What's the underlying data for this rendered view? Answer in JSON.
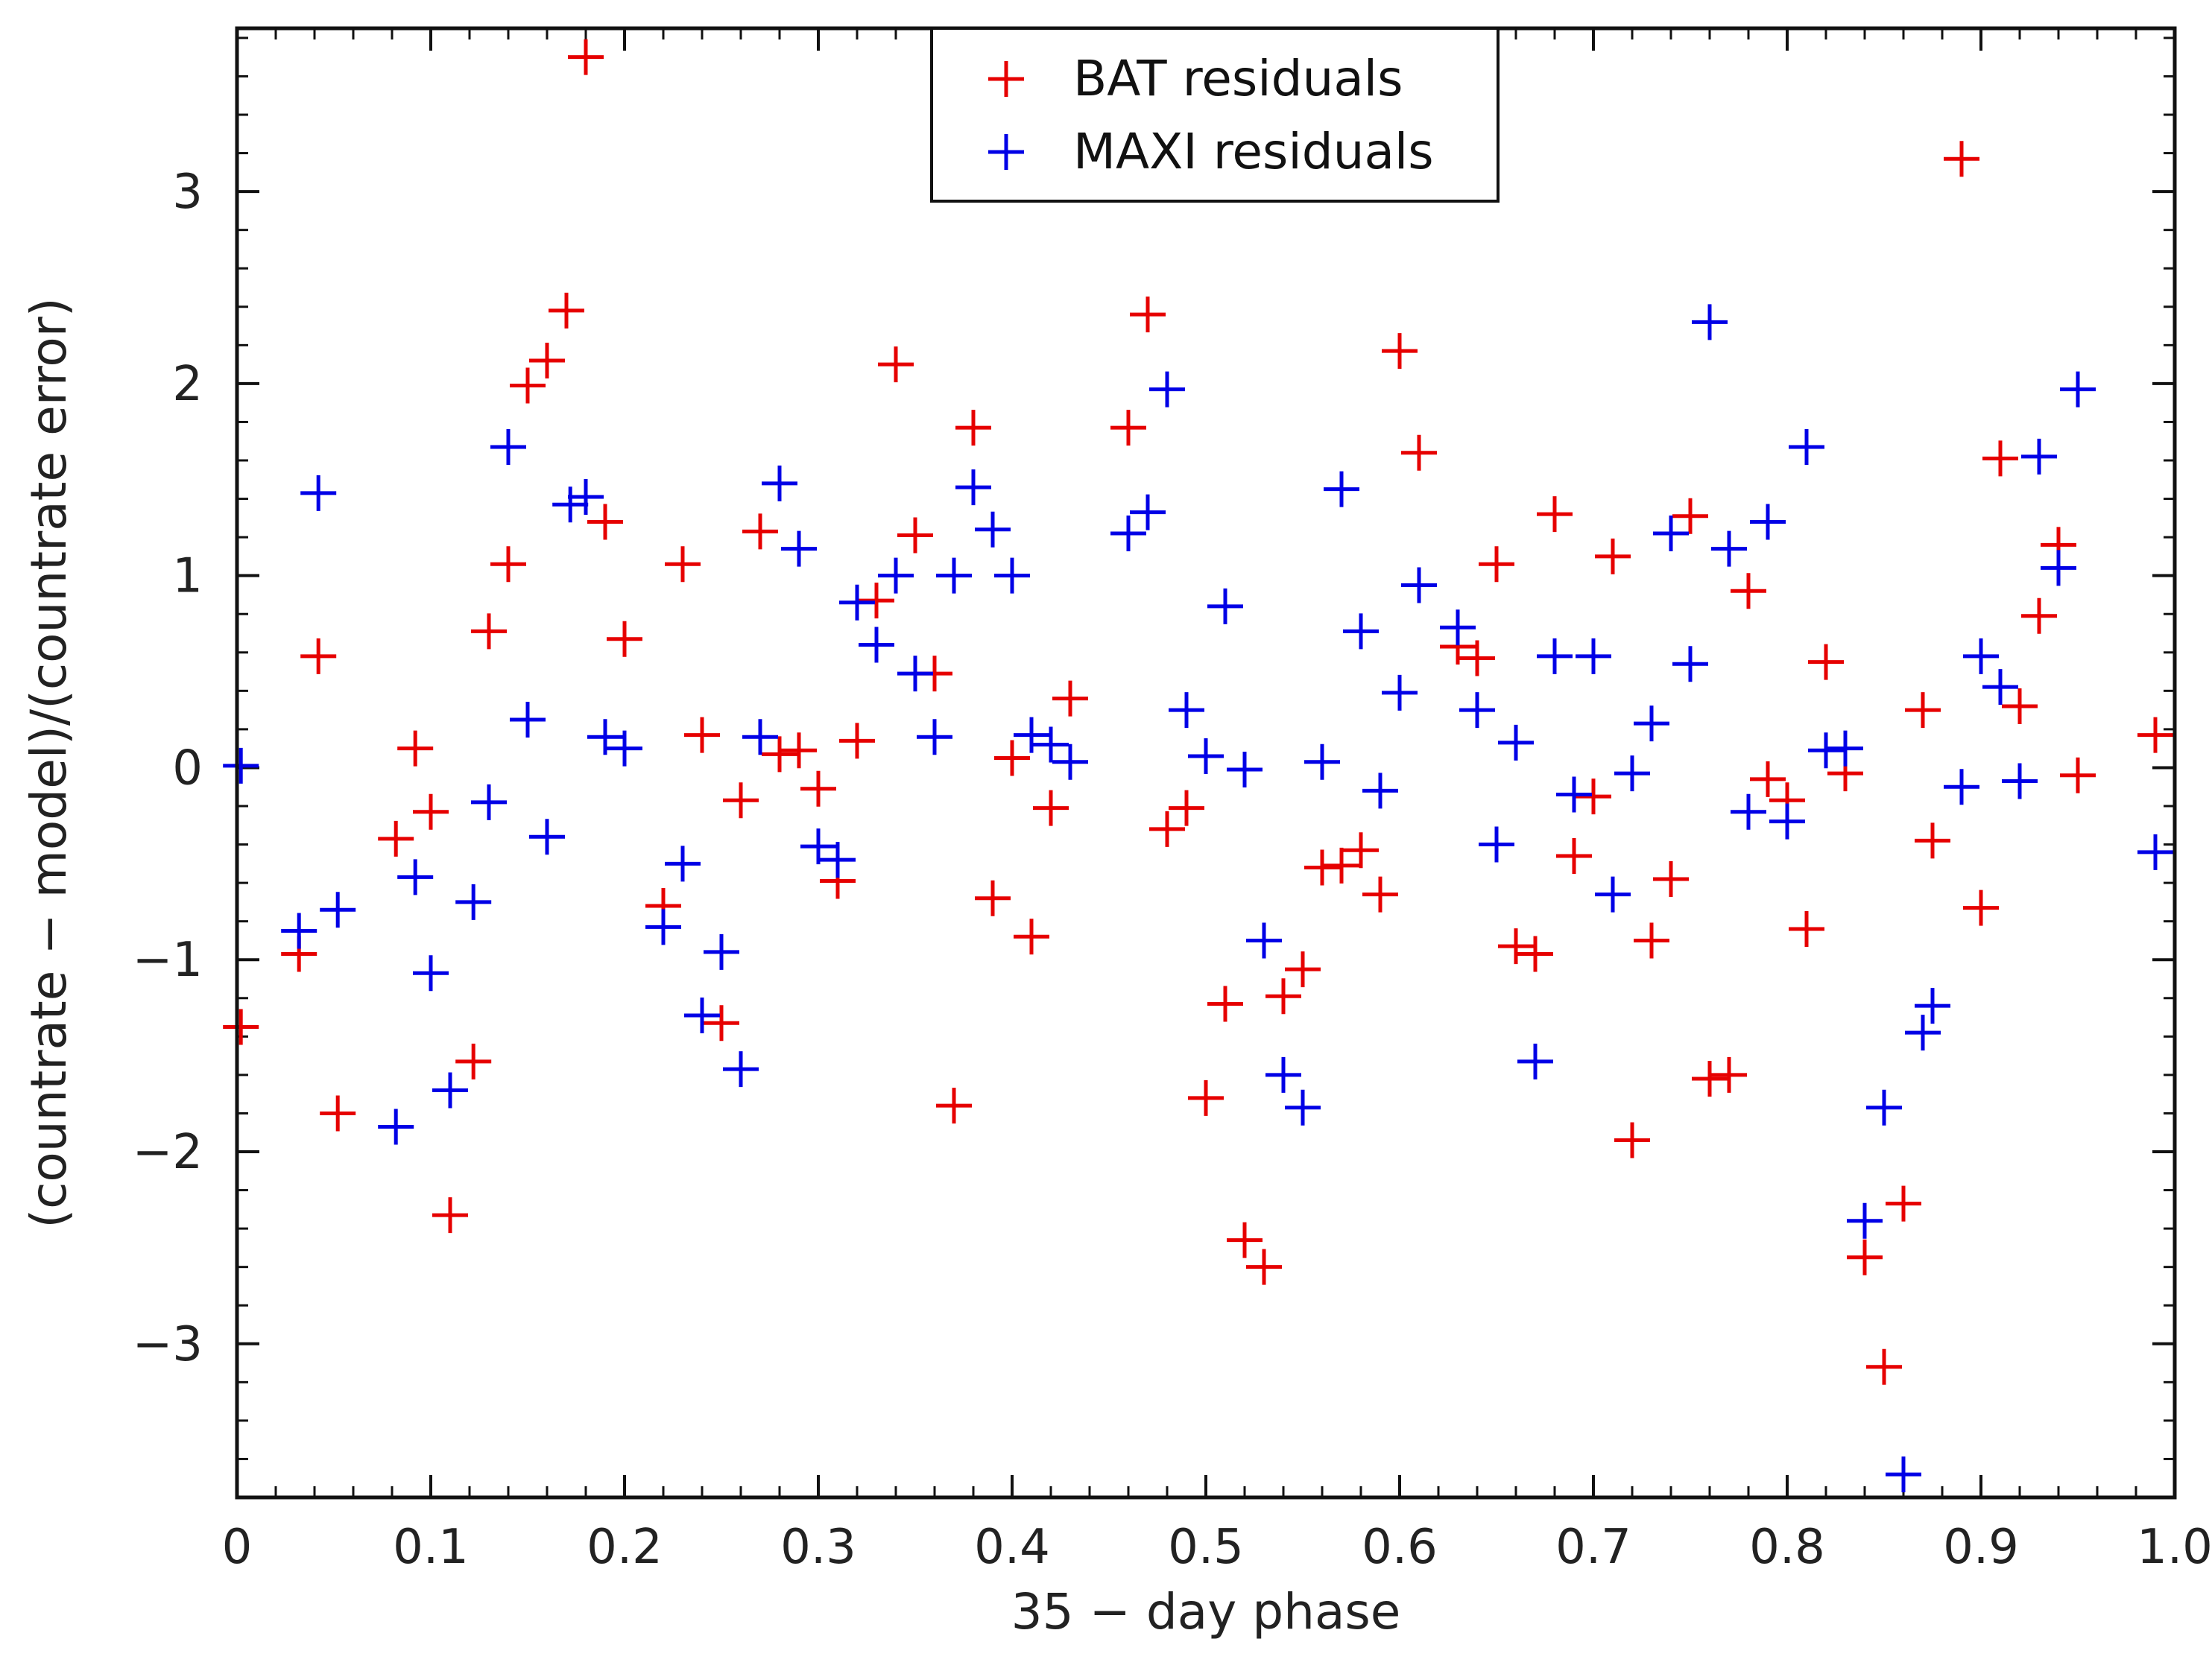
{
  "chart_data": {
    "type": "scatter",
    "title": "",
    "xlabel": "35 − day phase",
    "ylabel": "(countrate − model)/(countrate error)",
    "xlim": [
      0,
      1.0
    ],
    "ylim": [
      -3.8,
      3.85
    ],
    "xticks": [
      0,
      0.1,
      0.2,
      0.3,
      0.4,
      0.5,
      0.6,
      0.7,
      0.8,
      0.9,
      1.0
    ],
    "xtick_labels": [
      "0",
      "0.1",
      "0.2",
      "0.3",
      "0.4",
      "0.5",
      "0.6",
      "0.7",
      "0.8",
      "0.9",
      "1.0"
    ],
    "yticks": [
      -3,
      -2,
      -1,
      0,
      1,
      2,
      3
    ],
    "ytick_labels": [
      "−3",
      "−2",
      "−1",
      "0",
      "1",
      "2",
      "3"
    ],
    "grid": false,
    "legend_position": "top-center",
    "marker": "+",
    "series": [
      {
        "name": "BAT residuals",
        "color": "#e60000",
        "x": [
          0.002,
          0.032,
          0.042,
          0.052,
          0.082,
          0.092,
          0.1,
          0.11,
          0.122,
          0.13,
          0.14,
          0.15,
          0.16,
          0.17,
          0.18,
          0.19,
          0.2,
          0.22,
          0.23,
          0.24,
          0.25,
          0.26,
          0.27,
          0.28,
          0.29,
          0.3,
          0.31,
          0.32,
          0.33,
          0.34,
          0.35,
          0.36,
          0.37,
          0.38,
          0.39,
          0.4,
          0.41,
          0.42,
          0.43,
          0.46,
          0.47,
          0.48,
          0.49,
          0.5,
          0.51,
          0.52,
          0.53,
          0.54,
          0.55,
          0.56,
          0.57,
          0.58,
          0.59,
          0.6,
          0.61,
          0.63,
          0.64,
          0.65,
          0.66,
          0.67,
          0.68,
          0.69,
          0.7,
          0.71,
          0.72,
          0.73,
          0.74,
          0.75,
          0.76,
          0.77,
          0.78,
          0.79,
          0.8,
          0.81,
          0.82,
          0.83,
          0.84,
          0.85,
          0.86,
          0.87,
          0.875,
          0.89,
          0.9,
          0.91,
          0.92,
          0.93,
          0.94,
          0.95,
          0.99
        ],
        "y": [
          -1.35,
          -0.97,
          0.58,
          -1.8,
          -0.37,
          0.1,
          -0.23,
          -2.33,
          -1.53,
          0.71,
          1.06,
          1.99,
          2.12,
          2.38,
          3.7,
          1.28,
          0.67,
          -0.72,
          1.06,
          0.17,
          -1.33,
          -0.17,
          1.23,
          0.07,
          0.09,
          -0.11,
          -0.59,
          0.14,
          0.87,
          2.1,
          1.21,
          0.49,
          -1.76,
          1.77,
          -0.68,
          0.05,
          -0.88,
          -0.21,
          0.36,
          1.77,
          2.36,
          -0.32,
          -0.21,
          -1.72,
          -1.23,
          -2.46,
          -2.6,
          -1.19,
          -1.05,
          -0.52,
          -0.51,
          -0.43,
          -0.66,
          2.17,
          1.64,
          0.63,
          0.57,
          1.06,
          -0.93,
          -0.97,
          1.32,
          -0.46,
          -0.15,
          1.1,
          -1.94,
          -0.9,
          -0.58,
          1.31,
          -1.62,
          -1.6,
          0.92,
          -0.06,
          -0.17,
          -0.84,
          0.55,
          -0.03,
          -2.55,
          -3.12,
          -2.27,
          0.3,
          -0.38,
          3.17,
          -0.73,
          1.61,
          0.32,
          0.79,
          1.16,
          -0.04,
          0.17
        ]
      },
      {
        "name": "MAXI residuals",
        "color": "#0000e6",
        "x": [
          0.002,
          0.032,
          0.042,
          0.052,
          0.082,
          0.092,
          0.1,
          0.11,
          0.122,
          0.13,
          0.14,
          0.15,
          0.16,
          0.172,
          0.18,
          0.19,
          0.2,
          0.22,
          0.23,
          0.24,
          0.25,
          0.26,
          0.27,
          0.28,
          0.29,
          0.3,
          0.31,
          0.32,
          0.33,
          0.34,
          0.35,
          0.36,
          0.37,
          0.38,
          0.39,
          0.4,
          0.41,
          0.42,
          0.43,
          0.46,
          0.47,
          0.48,
          0.49,
          0.5,
          0.51,
          0.52,
          0.53,
          0.54,
          0.55,
          0.56,
          0.57,
          0.58,
          0.59,
          0.6,
          0.61,
          0.63,
          0.64,
          0.65,
          0.66,
          0.67,
          0.68,
          0.69,
          0.7,
          0.71,
          0.72,
          0.73,
          0.74,
          0.75,
          0.76,
          0.77,
          0.78,
          0.79,
          0.8,
          0.81,
          0.82,
          0.83,
          0.84,
          0.85,
          0.86,
          0.87,
          0.875,
          0.89,
          0.9,
          0.91,
          0.92,
          0.93,
          0.94,
          0.95,
          0.99
        ],
        "y": [
          0.01,
          -0.85,
          1.43,
          -0.74,
          -1.87,
          -0.57,
          -1.07,
          -1.68,
          -0.7,
          -0.18,
          1.67,
          0.25,
          -0.36,
          1.37,
          1.41,
          0.16,
          0.1,
          -0.83,
          -0.5,
          -1.29,
          -0.96,
          -1.57,
          0.16,
          1.48,
          1.14,
          -0.41,
          -0.48,
          0.86,
          0.64,
          1.0,
          0.49,
          0.16,
          1.0,
          1.46,
          1.24,
          1.0,
          0.17,
          0.12,
          0.03,
          1.22,
          1.33,
          1.97,
          0.3,
          0.06,
          0.84,
          -0.01,
          -0.9,
          -1.6,
          -1.77,
          0.03,
          1.45,
          0.71,
          -0.12,
          0.39,
          0.95,
          0.73,
          0.3,
          -0.4,
          0.13,
          -1.53,
          0.58,
          -0.14,
          0.58,
          -0.66,
          -0.03,
          0.23,
          1.22,
          0.54,
          2.32,
          1.14,
          -0.23,
          1.28,
          -0.28,
          1.67,
          0.09,
          0.1,
          -2.36,
          -1.77,
          -3.68,
          -1.38,
          -1.24,
          -0.1,
          0.58,
          0.42,
          -0.07,
          1.62,
          1.04,
          1.97,
          -0.44
        ]
      }
    ]
  }
}
